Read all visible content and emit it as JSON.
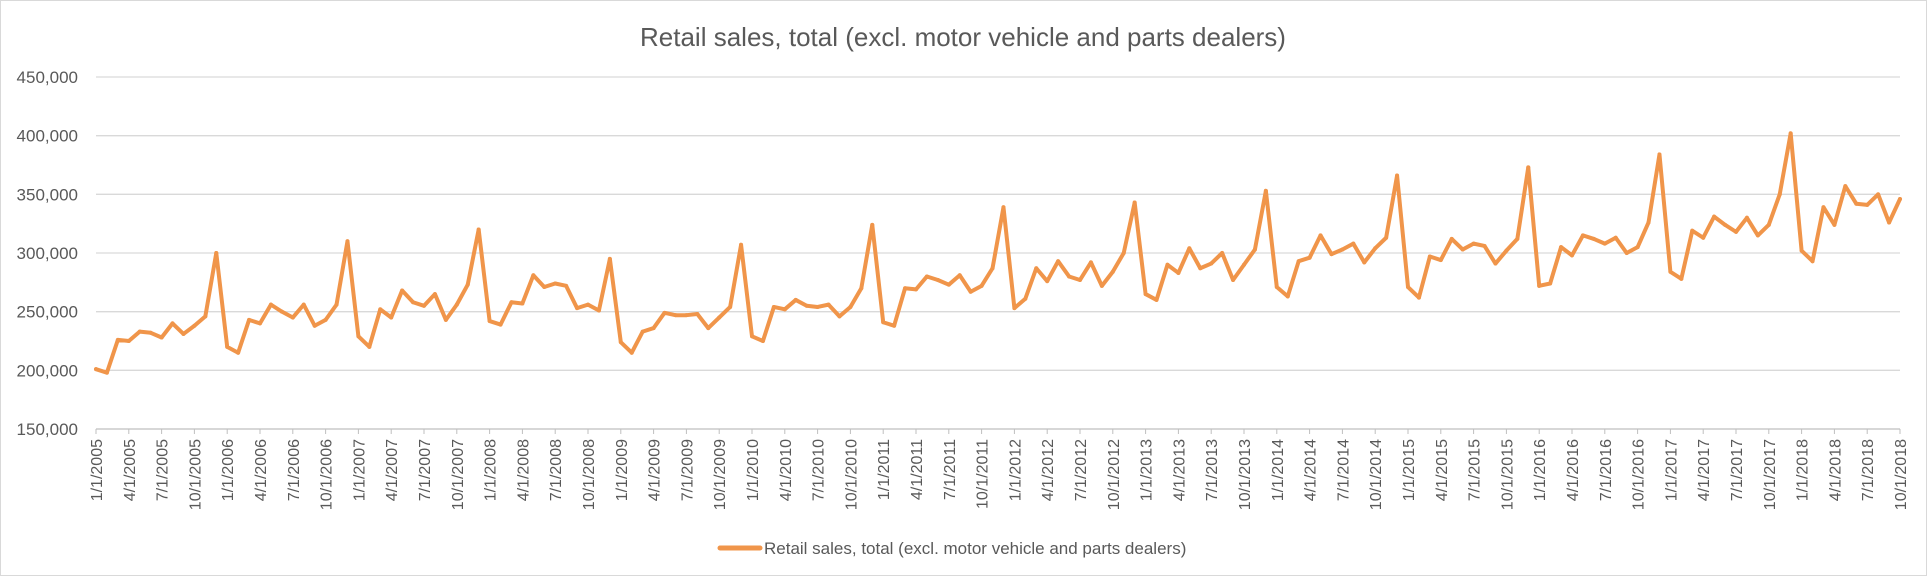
{
  "chart_data": {
    "type": "line",
    "title": "Retail sales, total (excl. motor vehicle and parts dealers)",
    "xlabel": "",
    "ylabel": "",
    "ylim": [
      150000,
      450000
    ],
    "y_ticks": [
      "150,000",
      "200,000",
      "250,000",
      "300,000",
      "350,000",
      "400,000",
      "450,000"
    ],
    "x_start": "1/1/2005",
    "x_tick_labels": [
      "1/1/2005",
      "4/1/2005",
      "7/1/2005",
      "10/1/2005",
      "1/1/2006",
      "4/1/2006",
      "7/1/2006",
      "10/1/2006",
      "1/1/2007",
      "4/1/2007",
      "7/1/2007",
      "10/1/2007",
      "1/1/2008",
      "4/1/2008",
      "7/1/2008",
      "10/1/2008",
      "1/1/2009",
      "4/1/2009",
      "7/1/2009",
      "10/1/2009",
      "1/1/2010",
      "4/1/2010",
      "7/1/2010",
      "10/1/2010",
      "1/1/2011",
      "4/1/2011",
      "7/1/2011",
      "10/1/2011",
      "1/1/2012",
      "4/1/2012",
      "7/1/2012",
      "10/1/2012",
      "1/1/2013",
      "4/1/2013",
      "7/1/2013",
      "10/1/2013",
      "1/1/2014",
      "4/1/2014",
      "7/1/2014",
      "10/1/2014",
      "1/1/2015",
      "4/1/2015",
      "7/1/2015",
      "10/1/2015",
      "1/1/2016",
      "4/1/2016",
      "7/1/2016",
      "10/1/2016",
      "1/1/2017",
      "4/1/2017",
      "7/1/2017",
      "10/1/2017",
      "1/1/2018",
      "4/1/2018",
      "7/1/2018",
      "10/1/2018"
    ],
    "grid": true,
    "legend_position": "bottom",
    "series": [
      {
        "name": "Retail sales, total (excl. motor vehicle and parts dealers)",
        "color": "#f0954a",
        "values": [
          201000,
          198000,
          226000,
          225000,
          233000,
          232000,
          228000,
          240000,
          231000,
          238000,
          246000,
          300000,
          220000,
          215000,
          243000,
          240000,
          256000,
          250000,
          245000,
          256000,
          238000,
          243000,
          256000,
          310000,
          229000,
          220000,
          252000,
          245000,
          268000,
          258000,
          255000,
          265000,
          243000,
          256000,
          273000,
          320000,
          242000,
          239000,
          258000,
          257000,
          281000,
          271000,
          274000,
          272000,
          253000,
          256000,
          251000,
          295000,
          224000,
          215000,
          233000,
          236000,
          249000,
          247000,
          247000,
          248000,
          236000,
          245000,
          254000,
          307000,
          229000,
          225000,
          254000,
          252000,
          260000,
          255000,
          254000,
          256000,
          246000,
          254000,
          270000,
          324000,
          241000,
          238000,
          270000,
          269000,
          280000,
          277000,
          273000,
          281000,
          267000,
          272000,
          287000,
          339000,
          253000,
          261000,
          287000,
          276000,
          293000,
          280000,
          277000,
          292000,
          272000,
          284000,
          300000,
          343000,
          265000,
          260000,
          290000,
          283000,
          304000,
          287000,
          291000,
          300000,
          277000,
          290000,
          303000,
          353000,
          271000,
          263000,
          293000,
          296000,
          315000,
          299000,
          303000,
          308000,
          292000,
          304000,
          313000,
          366000,
          271000,
          262000,
          297000,
          294000,
          312000,
          303000,
          308000,
          306000,
          291000,
          302000,
          312000,
          373000,
          272000,
          274000,
          305000,
          298000,
          315000,
          312000,
          308000,
          313000,
          300000,
          305000,
          326000,
          384000,
          284000,
          278000,
          319000,
          313000,
          331000,
          324000,
          318000,
          330000,
          315000,
          324000,
          350000,
          402000,
          302000,
          293000,
          339000,
          324000,
          357000,
          342000,
          341000,
          350000,
          326000,
          346000
        ]
      }
    ]
  }
}
